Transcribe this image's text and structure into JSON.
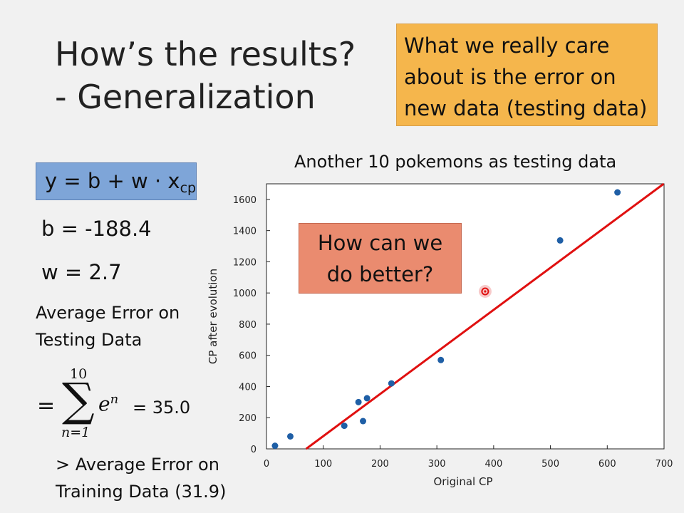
{
  "slide": {
    "title_line1": "How’s the results?",
    "title_line2": "- Generalization",
    "callout": "What we really care about is the error on new data (testing data)",
    "model": {
      "lhs": "y = b + w · x",
      "subscript": "cp"
    },
    "b_text": "b = -188.4",
    "w_text": "w = 2.7",
    "avg_error_label": "Average Error on Testing Data",
    "sum": {
      "eq": "=",
      "upper": "10",
      "sigma": "∑",
      "lower": "n=1",
      "term": "e",
      "term_sup": "n",
      "value": "= 35.0"
    },
    "compare_line1": "> Average Error on",
    "compare_line2": "Training Data (31.9)",
    "bubble_line1": "How can we",
    "bubble_line2": "do better?"
  },
  "chart_data": {
    "type": "scatter",
    "title": "Another 10 pokemons as testing data",
    "xlabel": "Original CP",
    "ylabel": "CP after evolution",
    "xlim": [
      0,
      700
    ],
    "ylim": [
      0,
      1700
    ],
    "xticks": [
      0,
      100,
      200,
      300,
      400,
      500,
      600,
      700
    ],
    "yticks": [
      0,
      200,
      400,
      600,
      800,
      1000,
      1200,
      1400,
      1600
    ],
    "points": [
      {
        "x": 15,
        "y": 20
      },
      {
        "x": 42,
        "y": 80
      },
      {
        "x": 137,
        "y": 148
      },
      {
        "x": 162,
        "y": 300
      },
      {
        "x": 170,
        "y": 178
      },
      {
        "x": 177,
        "y": 325
      },
      {
        "x": 220,
        "y": 420
      },
      {
        "x": 307,
        "y": 570
      },
      {
        "x": 517,
        "y": 1337
      },
      {
        "x": 618,
        "y": 1645
      }
    ],
    "highlight_point": {
      "x": 385,
      "y": 1010
    },
    "fit_line": {
      "b": -188.4,
      "w": 2.7
    },
    "colors": {
      "points": "#1f5fa6",
      "line": "#e01010",
      "highlight": "#e01010"
    }
  }
}
